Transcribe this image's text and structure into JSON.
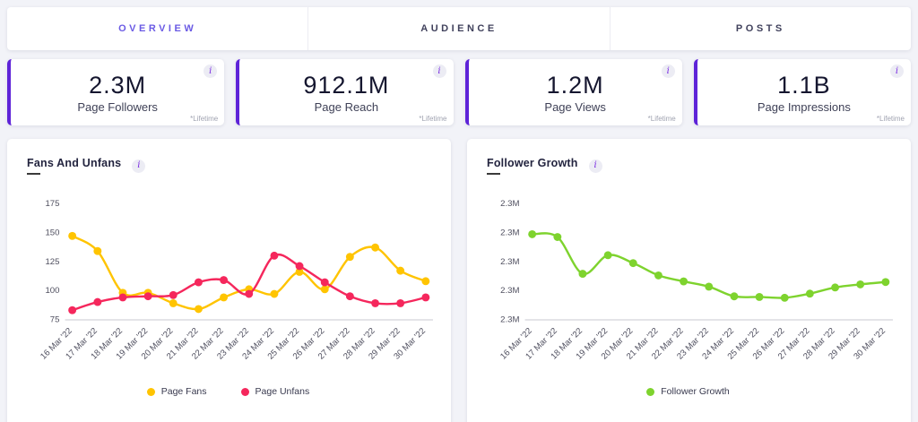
{
  "colors": {
    "accent_purple": "#5e23d8",
    "tab_active": "#6a5ae4",
    "page_fans": "#ffc400",
    "page_unfans": "#f5275c",
    "follower_growth": "#7ed32e",
    "page_background": "#f2f3f8"
  },
  "tabs": [
    {
      "label": "OVERVIEW",
      "active": true
    },
    {
      "label": "AUDIENCE",
      "active": false
    },
    {
      "label": "POSTS",
      "active": false
    }
  ],
  "info_icon_glyph": "i",
  "stat_cards": [
    {
      "value": "2.3M",
      "label": "Page Followers",
      "footnote": "*Lifetime"
    },
    {
      "value": "912.1M",
      "label": "Page Reach",
      "footnote": "*Lifetime"
    },
    {
      "value": "1.2M",
      "label": "Page Views",
      "footnote": "*Lifetime"
    },
    {
      "value": "1.1B",
      "label": "Page Impressions",
      "footnote": "*Lifetime"
    }
  ],
  "chart_data": [
    {
      "type": "line",
      "title": "Fans And Unfans",
      "categories": [
        "16 Mar '22",
        "17 Mar '22",
        "18 Mar '22",
        "19 Mar '22",
        "20 Mar '22",
        "21 Mar '22",
        "22 Mar '22",
        "23 Mar '22",
        "24 Mar '22",
        "25 Mar '22",
        "26 Mar '22",
        "27 Mar '22",
        "28 Mar '22",
        "29 Mar '22",
        "30 Mar '22"
      ],
      "series": [
        {
          "name": "Page Fans",
          "color": "#ffc400",
          "values": [
            147,
            134,
            98,
            98,
            89,
            84,
            94,
            101,
            97,
            116,
            101,
            129,
            137,
            117,
            108
          ]
        },
        {
          "name": "Page Unfans",
          "color": "#f5275c",
          "values": [
            83,
            90,
            94,
            95,
            96,
            107,
            109,
            97,
            130,
            121,
            107,
            95,
            89,
            89,
            94
          ]
        }
      ],
      "ylim": [
        75,
        175
      ],
      "yticks": [
        75,
        100,
        125,
        150,
        175
      ],
      "ytick_labels": [
        "75",
        "100",
        "125",
        "150",
        "175"
      ],
      "grid": false,
      "legend_position": "bottom"
    },
    {
      "type": "line",
      "title": "Follower Growth",
      "categories": [
        "16 Mar '22",
        "17 Mar '22",
        "18 Mar '22",
        "19 Mar '22",
        "20 Mar '22",
        "21 Mar '22",
        "22 Mar '22",
        "23 Mar '22",
        "24 Mar '22",
        "25 Mar '22",
        "26 Mar '22",
        "27 Mar '22",
        "28 Mar '22",
        "29 Mar '22",
        "30 Mar '22"
      ],
      "series": [
        {
          "name": "Follower Growth",
          "color": "#7ed32e",
          "values": [
            73.5,
            71.1,
            39.4,
            55.4,
            48.6,
            38.0,
            32.8,
            28.3,
            19.9,
            19.4,
            18.7,
            22.3,
            27.6,
            30.2,
            32.3
          ]
        }
      ],
      "ylim": [
        0,
        100
      ],
      "yticks": [
        0,
        25,
        50,
        75,
        100
      ],
      "ytick_labels": [
        "2.3M",
        "2.3M",
        "2.3M",
        "2.3M",
        "2.3M"
      ],
      "grid": false,
      "legend_position": "bottom"
    }
  ]
}
